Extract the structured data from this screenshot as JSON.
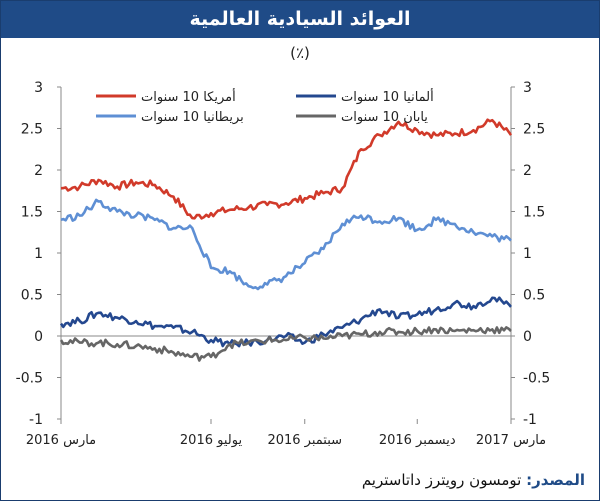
{
  "header": {
    "title": "العوائد السيادية العالمية",
    "unit": "(٪)"
  },
  "source": {
    "label": "المصدر:",
    "text": "تومسون رويترز داتاستريم"
  },
  "colors": {
    "title_bg": "#1f4b87",
    "us": "#d13a2a",
    "de": "#24488f",
    "uk": "#5e8fd4",
    "jp": "#666666"
  },
  "chart_data": {
    "type": "line",
    "title": "العوائد السيادية العالمية",
    "ylim": [
      -1,
      3
    ],
    "y_ticks": [
      3,
      2.5,
      2,
      1.5,
      1,
      0.5,
      0,
      -0.5,
      -1
    ],
    "y_tick_labels": [
      "3",
      "2.5",
      "2",
      "1.5",
      "1",
      "0.5",
      "0",
      "-0.5",
      "-1"
    ],
    "x_ticks": [
      "مارس 2016",
      "يوليو 2016",
      "سبتمبر 2016",
      "ديسمبر 2016",
      "مارس 2017"
    ],
    "x_tick_positions": [
      0,
      4,
      6.5,
      9.5,
      12
    ],
    "xlim": [
      0,
      12
    ],
    "grid": false,
    "legend_position": "top",
    "series": [
      {
        "name": "أمريكا 10 سنوات",
        "key": "us",
        "x": [
          0,
          0.5,
          1,
          1.5,
          2,
          2.5,
          3,
          3.5,
          4,
          4.5,
          5,
          5.5,
          6,
          6.5,
          7,
          7.5,
          8,
          8.5,
          9,
          9.5,
          10,
          10.5,
          11,
          11.5,
          12
        ],
        "values": [
          1.78,
          1.8,
          1.88,
          1.8,
          1.85,
          1.82,
          1.68,
          1.42,
          1.48,
          1.52,
          1.55,
          1.58,
          1.6,
          1.66,
          1.72,
          1.78,
          2.25,
          2.42,
          2.58,
          2.48,
          2.42,
          2.44,
          2.48,
          2.6,
          2.42
        ]
      },
      {
        "name": "ألمانيا 10 سنوات",
        "key": "de",
        "x": [
          0,
          0.5,
          1,
          1.5,
          2,
          2.5,
          3,
          3.5,
          4,
          4.5,
          5,
          5.5,
          6,
          6.5,
          7,
          7.5,
          8,
          8.5,
          9,
          9.5,
          10,
          10.5,
          11,
          11.5,
          12
        ],
        "values": [
          0.15,
          0.18,
          0.28,
          0.22,
          0.18,
          0.12,
          0.1,
          0.05,
          -0.05,
          -0.1,
          -0.08,
          -0.05,
          0.0,
          -0.08,
          0.02,
          0.1,
          0.2,
          0.32,
          0.22,
          0.26,
          0.32,
          0.4,
          0.36,
          0.46,
          0.35
        ]
      },
      {
        "name": "بريطانيا 10 سنوات",
        "key": "uk",
        "x": [
          0,
          0.5,
          1,
          1.5,
          2,
          2.5,
          3,
          3.5,
          4,
          4.5,
          5,
          5.5,
          6,
          6.5,
          7,
          7.5,
          8,
          8.5,
          9,
          9.5,
          10,
          10.5,
          11,
          11.5,
          12
        ],
        "values": [
          1.4,
          1.45,
          1.62,
          1.5,
          1.45,
          1.4,
          1.3,
          1.3,
          0.82,
          0.78,
          0.6,
          0.62,
          0.72,
          0.88,
          1.05,
          1.35,
          1.45,
          1.38,
          1.42,
          1.28,
          1.4,
          1.35,
          1.25,
          1.2,
          1.15
        ]
      },
      {
        "name": "يابان 10 سنوات",
        "key": "jp",
        "x": [
          0,
          0.5,
          1,
          1.5,
          2,
          2.5,
          3,
          3.5,
          4,
          4.5,
          5,
          5.5,
          6,
          6.5,
          7,
          7.5,
          8,
          8.5,
          9,
          9.5,
          10,
          10.5,
          11,
          11.5,
          12
        ],
        "values": [
          -0.05,
          -0.08,
          -0.08,
          -0.1,
          -0.12,
          -0.15,
          -0.2,
          -0.25,
          -0.25,
          -0.1,
          -0.08,
          -0.05,
          -0.05,
          -0.02,
          -0.03,
          0.0,
          0.02,
          0.05,
          0.05,
          0.06,
          0.08,
          0.06,
          0.07,
          0.08,
          0.06
        ]
      }
    ]
  }
}
